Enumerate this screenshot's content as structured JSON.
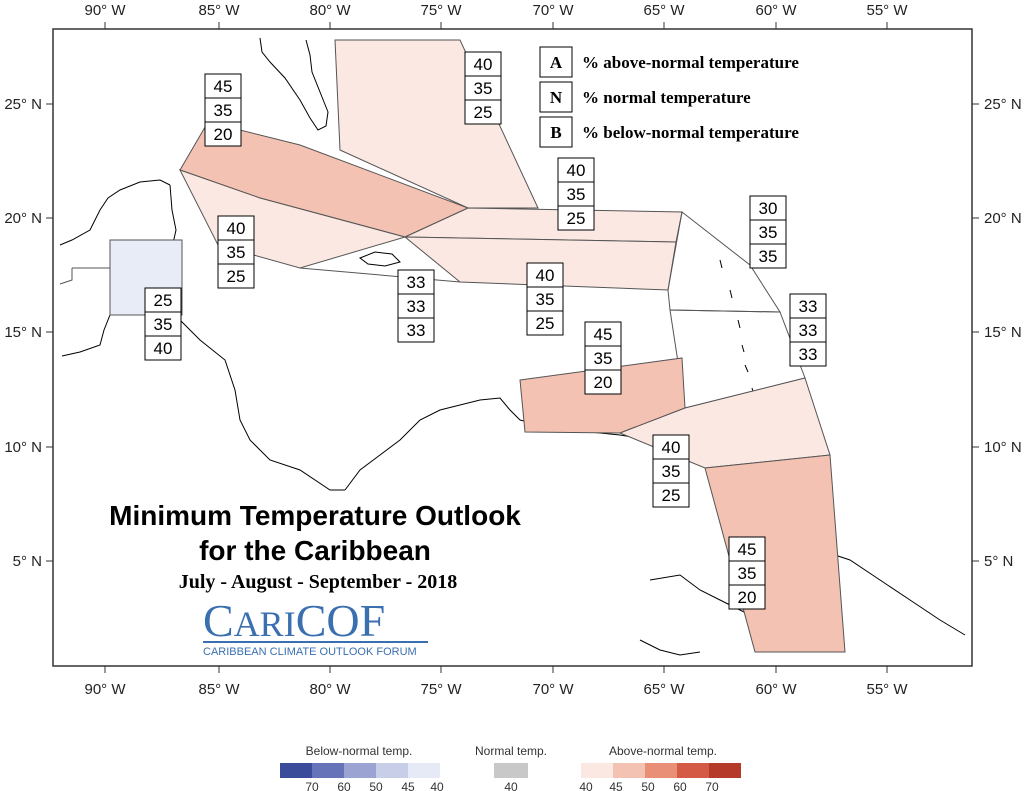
{
  "title": "Minimum Temperature Outlook",
  "title_line2": "for the Caribbean",
  "subtitle": "July - August - September - 2018",
  "logo": {
    "name": "CARICOF",
    "tagline": "CARIBBEAN CLIMATE OUTLOOK FORUM"
  },
  "key": [
    {
      "letter": "A",
      "text": "% above-normal temperature"
    },
    {
      "letter": "N",
      "text": "% normal temperature"
    },
    {
      "letter": "B",
      "text": "% below-normal temperature"
    }
  ],
  "lon_ticks": [
    "90° W",
    "85° W",
    "80° W",
    "75° W",
    "70° W",
    "65° W",
    "60° W",
    "55° W"
  ],
  "lat_ticks": [
    "25° N",
    "20° N",
    "15° N",
    "10° N",
    "5° N"
  ],
  "regions": [
    {
      "name": "bahamas",
      "probs": [
        "40",
        "35",
        "25"
      ],
      "fill": "#fbe8e2"
    },
    {
      "name": "cuba",
      "probs": [
        "45",
        "35",
        "20"
      ],
      "fill": "#f4c2b2"
    },
    {
      "name": "western-cuba-cayman",
      "probs": [
        "40",
        "35",
        "25"
      ],
      "fill": "#fbe8e2"
    },
    {
      "name": "belize",
      "probs": [
        "25",
        "35",
        "40"
      ],
      "fill": "#e8ecf7"
    },
    {
      "name": "jamaica",
      "probs": [
        "33",
        "33",
        "33"
      ],
      "fill": "none"
    },
    {
      "name": "hispaniola-north",
      "probs": [
        "40",
        "35",
        "25"
      ],
      "fill": "#fbe8e2"
    },
    {
      "name": "hispaniola-south",
      "probs": [
        "40",
        "35",
        "25"
      ],
      "fill": "#fbe8e2"
    },
    {
      "name": "northern-lesser-antilles",
      "probs": [
        "30",
        "35",
        "35"
      ],
      "fill": "none"
    },
    {
      "name": "windward-islands",
      "probs": [
        "33",
        "33",
        "33"
      ],
      "fill": "none"
    },
    {
      "name": "abc-islands",
      "probs": [
        "45",
        "35",
        "20"
      ],
      "fill": "#f4c2b2"
    },
    {
      "name": "trinidad-tobago",
      "probs": [
        "40",
        "35",
        "25"
      ],
      "fill": "#fbe8e2"
    },
    {
      "name": "guianas",
      "probs": [
        "45",
        "35",
        "20"
      ],
      "fill": "#f4c2b2"
    }
  ],
  "legend": {
    "below_title": "Below-normal temp.",
    "normal_title": "Normal temp.",
    "above_title": "Above-normal temp.",
    "below_values": [
      "70",
      "60",
      "50",
      "45",
      "40"
    ],
    "normal_values": [
      "40"
    ],
    "above_values": [
      "40",
      "45",
      "50",
      "60",
      "70"
    ],
    "below_colors": [
      "#3a4c9a",
      "#6673b8",
      "#9ba3d2",
      "#c8cde8",
      "#e6e9f6"
    ],
    "normal_colors": [
      "#c8c8c8"
    ],
    "above_colors": [
      "#fbe8e2",
      "#f4c2b2",
      "#e98f77",
      "#d45a45",
      "#b63a2a"
    ]
  }
}
